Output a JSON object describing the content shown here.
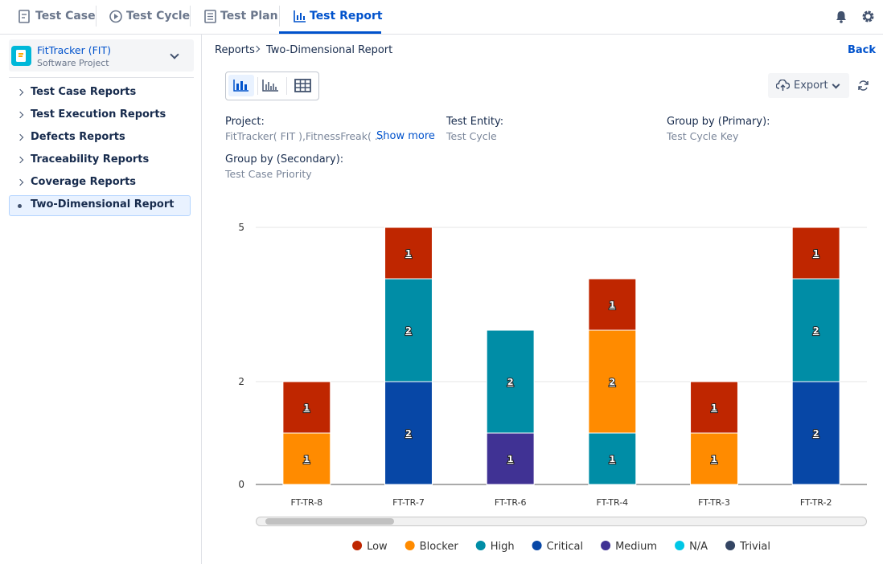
{
  "nav": {
    "tabs": [
      "Test Case",
      "Test Cycle",
      "Test Plan",
      "Test Report"
    ]
  },
  "sidebar": {
    "project": {
      "name": "FitTracker (FIT)",
      "type": "Software Project"
    },
    "items": [
      "Test Case Reports",
      "Test Execution Reports",
      "Defects Reports",
      "Traceability Reports",
      "Coverage Reports",
      "Two-Dimensional Report"
    ]
  },
  "breadcrumb": [
    "Reports",
    "Two-Dimensional Report"
  ],
  "back": "Back",
  "export": "Export",
  "filters": [
    {
      "label": "Project:",
      "value": "FitTracker( FIT ),FitnessFreak( ...",
      "action": "Show more"
    },
    {
      "label": "Test Entity:",
      "value": "Test Cycle"
    },
    {
      "label": "Group by (Primary):",
      "value": "Test Cycle Key"
    },
    {
      "label": "Group by (Secondary):",
      "value": "Test Case Priority"
    }
  ],
  "chart_data": {
    "type": "stacked_bar",
    "categories": [
      "FT-TR-8",
      "FT-TR-7",
      "FT-TR-6",
      "FT-TR-4",
      "FT-TR-3",
      "FT-TR-2"
    ],
    "series": [
      {
        "name": "Low",
        "color": "#bf2600",
        "values": [
          1,
          1,
          null,
          1,
          1,
          1
        ]
      },
      {
        "name": "Blocker",
        "color": "#ff8b00",
        "values": [
          1,
          null,
          null,
          2,
          1,
          null
        ]
      },
      {
        "name": "High",
        "color": "#008da6",
        "values": [
          null,
          2,
          2,
          1,
          null,
          2
        ]
      },
      {
        "name": "Critical",
        "color": "#0747a6",
        "values": [
          null,
          2,
          null,
          null,
          null,
          2
        ]
      },
      {
        "name": "Medium",
        "color": "#403294",
        "values": [
          null,
          null,
          1,
          null,
          null,
          null
        ]
      },
      {
        "name": "N/A",
        "color": "#00c7e6",
        "values": [
          null,
          null,
          null,
          null,
          null,
          null
        ]
      },
      {
        "name": "Trivial",
        "color": "#344563",
        "values": [
          null,
          null,
          null,
          null,
          null,
          null
        ]
      }
    ],
    "ylim": [
      0,
      5
    ],
    "yticks": [
      0,
      2,
      5
    ],
    "grid": true,
    "legend": "bottom"
  }
}
